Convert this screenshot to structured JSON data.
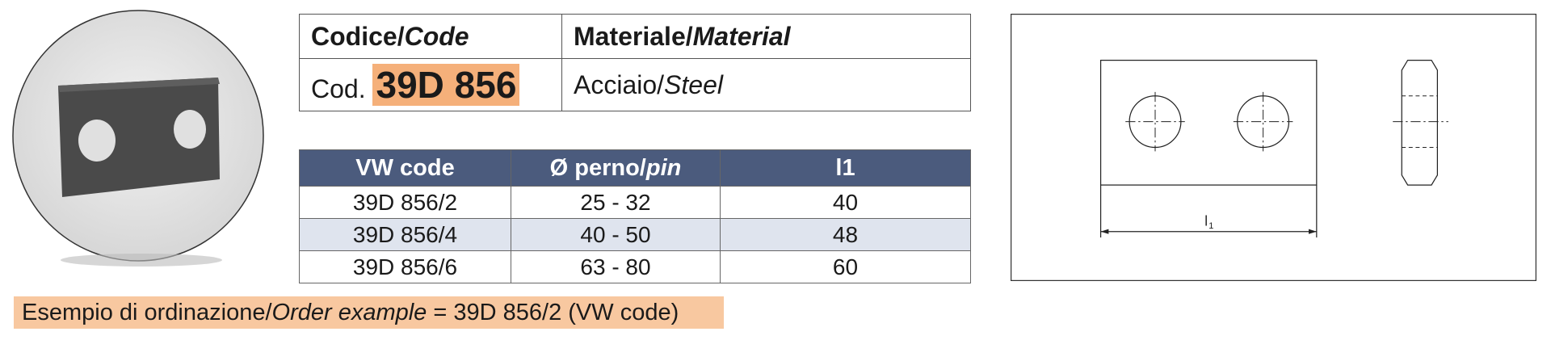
{
  "code_table": {
    "code_label": "Codice/",
    "code_label_en": "Code",
    "material_label": "Materiale/",
    "material_label_en": "Material",
    "code_prefix": "Cod.",
    "code": "39D 856",
    "material": "Acciaio/",
    "material_en": "Steel"
  },
  "table": {
    "header": [
      [
        "VW code"
      ],
      [
        "Ø perno/",
        "pin"
      ],
      [
        "l1"
      ]
    ],
    "rows": [
      [
        "39D 856/2",
        "25 - 32",
        "40"
      ],
      [
        "39D 856/4",
        "40 - 50",
        "48"
      ],
      [
        "39D 856/6",
        "63 - 80",
        "60"
      ]
    ]
  },
  "note": [
    "Esempio di ordinazione/",
    "Order example",
    " = 39D 856/2 (VW code)"
  ],
  "drawing": {
    "dimension_label": "l",
    "dimension_sub": "1"
  }
}
